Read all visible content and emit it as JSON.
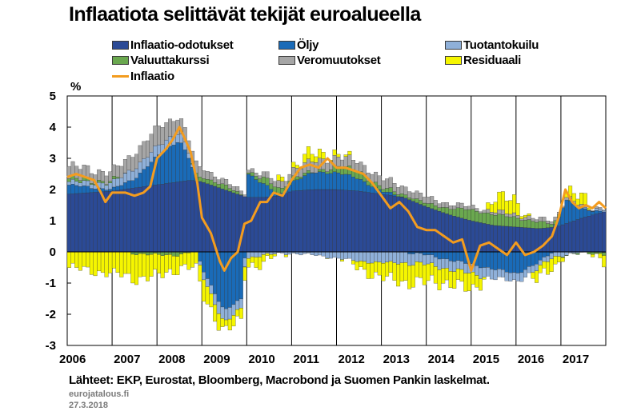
{
  "chart_data": {
    "type": "bar",
    "title": "Inflaatiota selittävät tekijät euroalueella",
    "ylabel": "%",
    "xlabel": "",
    "ylim": [
      -3,
      5
    ],
    "yticks": [
      5,
      4,
      3,
      2,
      1,
      0,
      -1,
      -2,
      -3
    ],
    "years": [
      "2006",
      "2007",
      "2008",
      "2009",
      "2010",
      "2011",
      "2012",
      "2013",
      "2014",
      "2015",
      "2016",
      "2017"
    ],
    "x_start": 2006.0,
    "x_end": 2018.0,
    "stack_order": [
      "Inflaatio-odotukset",
      "Öljy",
      "Tuotantokuilu",
      "Valuuttakurssi",
      "Veromuutokset",
      "Residuaali"
    ],
    "anchor_dates": [
      2006.0,
      2007.0,
      2007.5,
      2008.0,
      2008.5,
      2008.75,
      2009.0,
      2009.5,
      2009.9,
      2010.0,
      2010.4,
      2010.75,
      2011.0,
      2011.5,
      2012.0,
      2012.5,
      2013.0,
      2013.5,
      2014.0,
      2014.5,
      2015.0,
      2015.5,
      2016.0,
      2016.5,
      2016.9,
      2017.1,
      2017.5,
      2018.0
    ],
    "series": [
      {
        "name": "Inflaatio-odotukset",
        "color": "#2b4a96",
        "values": [
          1.85,
          1.95,
          2.05,
          2.15,
          2.25,
          2.3,
          2.25,
          2.0,
          1.8,
          1.75,
          1.75,
          1.8,
          1.95,
          2.0,
          2.0,
          1.95,
          1.85,
          1.75,
          1.45,
          1.2,
          1.0,
          0.85,
          0.8,
          0.75,
          0.8,
          0.9,
          1.1,
          1.3
        ]
      },
      {
        "name": "Öljy",
        "color": "#1a6bb8",
        "values": [
          0.3,
          0.05,
          0.3,
          0.9,
          1.35,
          0.6,
          -0.5,
          -1.9,
          -1.5,
          0.8,
          0.4,
          0.0,
          0.3,
          0.55,
          0.55,
          0.4,
          0.1,
          0.0,
          -0.1,
          -0.25,
          -0.4,
          -0.55,
          -0.7,
          -0.35,
          0.1,
          0.8,
          0.25,
          0.0
        ]
      },
      {
        "name": "Tuotantokuilu",
        "color": "#8fb0d9",
        "values": [
          0.1,
          0.2,
          0.35,
          0.3,
          0.3,
          0.15,
          -0.2,
          -0.4,
          -0.3,
          -0.2,
          -0.1,
          -0.05,
          -0.05,
          -0.1,
          -0.2,
          -0.3,
          -0.35,
          -0.35,
          -0.3,
          -0.3,
          -0.3,
          -0.3,
          -0.25,
          -0.2,
          -0.15,
          -0.1,
          0.0,
          0.1
        ]
      },
      {
        "name": "Valuuttakurssi",
        "color": "#6aa84f",
        "values": [
          0.1,
          0.05,
          -0.05,
          -0.1,
          -0.1,
          0.0,
          0.15,
          0.15,
          0.0,
          0.05,
          0.2,
          0.15,
          0.15,
          0.0,
          0.2,
          0.25,
          0.1,
          0.1,
          0.1,
          0.2,
          0.35,
          0.35,
          0.3,
          0.2,
          0.1,
          0.0,
          -0.05,
          -0.05
        ]
      },
      {
        "name": "Veromuutokset",
        "color": "#a6a6a6",
        "values": [
          0.4,
          0.3,
          0.5,
          0.6,
          0.5,
          0.4,
          0.3,
          0.15,
          0.1,
          0.1,
          0.15,
          0.2,
          0.25,
          0.35,
          0.3,
          0.3,
          0.3,
          0.25,
          0.2,
          0.15,
          0.1,
          0.1,
          0.1,
          0.1,
          0.1,
          0.1,
          0.05,
          0.05
        ]
      },
      {
        "name": "Residuaali",
        "color": "#f5f500",
        "values": [
          -0.5,
          -0.7,
          -0.8,
          -0.7,
          -0.4,
          -0.5,
          -0.6,
          -0.3,
          -0.4,
          -0.2,
          -0.3,
          0.1,
          0.1,
          0.25,
          0.1,
          -0.2,
          -0.5,
          -0.6,
          -0.6,
          -0.4,
          -0.6,
          0.4,
          0.5,
          -0.4,
          -0.3,
          0.2,
          0.25,
          -0.25
        ]
      }
    ],
    "line": {
      "name": "Inflaatio",
      "color": "#f39c1f",
      "dates": [
        2006.0,
        2006.2,
        2006.4,
        2006.6,
        2006.75,
        2006.85,
        2007.0,
        2007.3,
        2007.5,
        2007.7,
        2007.85,
        2008.0,
        2008.2,
        2008.35,
        2008.5,
        2008.6,
        2008.75,
        2008.9,
        2009.0,
        2009.2,
        2009.4,
        2009.5,
        2009.65,
        2009.8,
        2009.95,
        2010.1,
        2010.3,
        2010.45,
        2010.6,
        2010.8,
        2011.0,
        2011.2,
        2011.4,
        2011.6,
        2011.8,
        2012.0,
        2012.2,
        2012.4,
        2012.6,
        2012.8,
        2013.0,
        2013.2,
        2013.4,
        2013.6,
        2013.8,
        2014.0,
        2014.2,
        2014.4,
        2014.6,
        2014.8,
        2015.0,
        2015.2,
        2015.4,
        2015.6,
        2015.8,
        2016.0,
        2016.2,
        2016.4,
        2016.6,
        2016.8,
        2016.95,
        2017.1,
        2017.25,
        2017.4,
        2017.55,
        2017.7,
        2017.85,
        2018.0
      ],
      "values": [
        2.4,
        2.5,
        2.4,
        2.3,
        1.9,
        1.6,
        1.9,
        1.9,
        1.8,
        1.9,
        2.1,
        3.0,
        3.3,
        3.6,
        4.0,
        3.7,
        3.2,
        2.2,
        1.1,
        0.6,
        -0.3,
        -0.6,
        -0.2,
        0.0,
        0.9,
        1.0,
        1.6,
        1.6,
        1.9,
        1.8,
        2.3,
        2.7,
        2.8,
        2.7,
        3.0,
        2.7,
        2.7,
        2.6,
        2.5,
        2.2,
        1.8,
        1.4,
        1.6,
        1.3,
        0.8,
        0.7,
        0.7,
        0.5,
        0.3,
        0.4,
        -0.6,
        0.2,
        0.3,
        0.1,
        -0.1,
        0.3,
        -0.1,
        0.0,
        0.2,
        0.5,
        1.1,
        2.0,
        1.6,
        1.4,
        1.5,
        1.4,
        1.6,
        1.4
      ]
    }
  },
  "legend": [
    {
      "label": "Inflaatio-odotukset",
      "kind": "box",
      "color": "#2b4a96"
    },
    {
      "label": "Öljy",
      "kind": "box",
      "color": "#1a6bb8"
    },
    {
      "label": "Tuotantokuilu",
      "kind": "box",
      "color": "#8fb0d9"
    },
    {
      "label": "Valuuttakurssi",
      "kind": "box",
      "color": "#6aa84f"
    },
    {
      "label": "Veromuutokset",
      "kind": "box",
      "color": "#a6a6a6"
    },
    {
      "label": "Residuaali",
      "kind": "box",
      "color": "#f5f500"
    },
    {
      "label": "Inflaatio",
      "kind": "line",
      "color": "#f39c1f"
    }
  ],
  "footer": {
    "source": "Lähteet: EKP, Eurostat, Bloomberg, Macrobond ja Suomen Pankin laskelmat.",
    "site": "eurojatalous.fi",
    "date": "27.3.2018"
  }
}
